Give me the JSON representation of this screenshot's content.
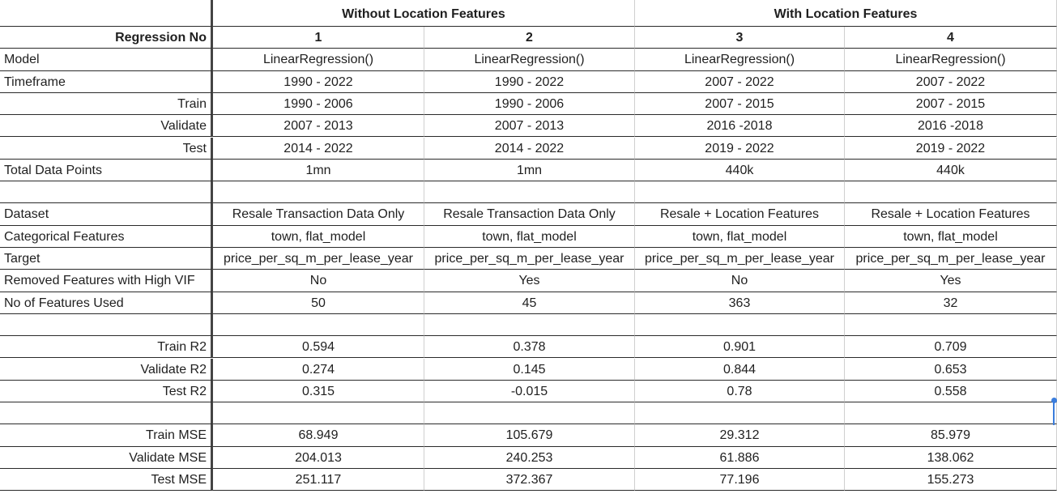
{
  "groups": {
    "without_location": "Without Location Features",
    "with_location": "With Location Features"
  },
  "rows": [
    {
      "label": "Regression No",
      "align": "right",
      "bold": true,
      "values": [
        "1",
        "2",
        "3",
        "4"
      ]
    },
    {
      "label": "Model",
      "align": "left",
      "bold": false,
      "values": [
        "LinearRegression()",
        "LinearRegression()",
        "LinearRegression()",
        "LinearRegression()"
      ]
    },
    {
      "label": "Timeframe",
      "align": "left",
      "bold": false,
      "values": [
        "1990 - 2022",
        "1990 - 2022",
        "2007 - 2022",
        "2007 - 2022"
      ]
    },
    {
      "label": "Train",
      "align": "right",
      "bold": false,
      "values": [
        "1990 - 2006",
        "1990 - 2006",
        "2007 - 2015",
        "2007 - 2015"
      ]
    },
    {
      "label": "Validate",
      "align": "right",
      "bold": false,
      "values": [
        "2007 - 2013",
        "2007 - 2013",
        "2016 -2018",
        "2016 -2018"
      ]
    },
    {
      "label": "Test",
      "align": "right",
      "bold": false,
      "values": [
        "2014 - 2022",
        "2014 - 2022",
        "2019 - 2022",
        "2019 - 2022"
      ]
    },
    {
      "label": "Total Data Points",
      "align": "left",
      "bold": false,
      "values": [
        "1mn",
        "1mn",
        "440k",
        "440k"
      ]
    },
    {
      "label": "",
      "align": "left",
      "bold": false,
      "values": [
        "",
        "",
        "",
        ""
      ]
    },
    {
      "label": "Dataset",
      "align": "left",
      "bold": false,
      "values": [
        "Resale Transaction Data Only",
        "Resale Transaction Data Only",
        "Resale + Location Features",
        "Resale + Location Features"
      ]
    },
    {
      "label": "Categorical Features",
      "align": "left",
      "bold": false,
      "values": [
        "town, flat_model",
        "town, flat_model",
        "town, flat_model",
        "town, flat_model"
      ]
    },
    {
      "label": "Target",
      "align": "left",
      "bold": false,
      "values": [
        "price_per_sq_m_per_lease_year",
        "price_per_sq_m_per_lease_year",
        "price_per_sq_m_per_lease_year",
        "price_per_sq_m_per_lease_year"
      ]
    },
    {
      "label": "Removed Features with High VIF",
      "align": "left",
      "bold": false,
      "values": [
        "No",
        "Yes",
        "No",
        "Yes"
      ]
    },
    {
      "label": "No of Features Used",
      "align": "left",
      "bold": false,
      "values": [
        "50",
        "45",
        "363",
        "32"
      ]
    },
    {
      "label": "",
      "align": "left",
      "bold": false,
      "values": [
        "",
        "",
        "",
        ""
      ]
    },
    {
      "label": "Train R2",
      "align": "right",
      "bold": false,
      "values": [
        "0.594",
        "0.378",
        "0.901",
        "0.709"
      ]
    },
    {
      "label": "Validate R2",
      "align": "right",
      "bold": false,
      "values": [
        "0.274",
        "0.145",
        "0.844",
        "0.653"
      ]
    },
    {
      "label": "Test R2",
      "align": "right",
      "bold": false,
      "values": [
        "0.315",
        "-0.015",
        "0.78",
        "0.558"
      ]
    },
    {
      "label": "",
      "align": "left",
      "bold": false,
      "values": [
        "",
        "",
        "",
        ""
      ]
    },
    {
      "label": "Train MSE",
      "align": "right",
      "bold": false,
      "values": [
        "68.949",
        "105.679",
        "29.312",
        "85.979"
      ]
    },
    {
      "label": "Validate MSE",
      "align": "right",
      "bold": false,
      "values": [
        "204.013",
        "240.253",
        "61.886",
        "138.062"
      ]
    },
    {
      "label": "Test MSE",
      "align": "right",
      "bold": false,
      "values": [
        "251.117",
        "372.367",
        "77.196",
        "155.273"
      ]
    }
  ]
}
